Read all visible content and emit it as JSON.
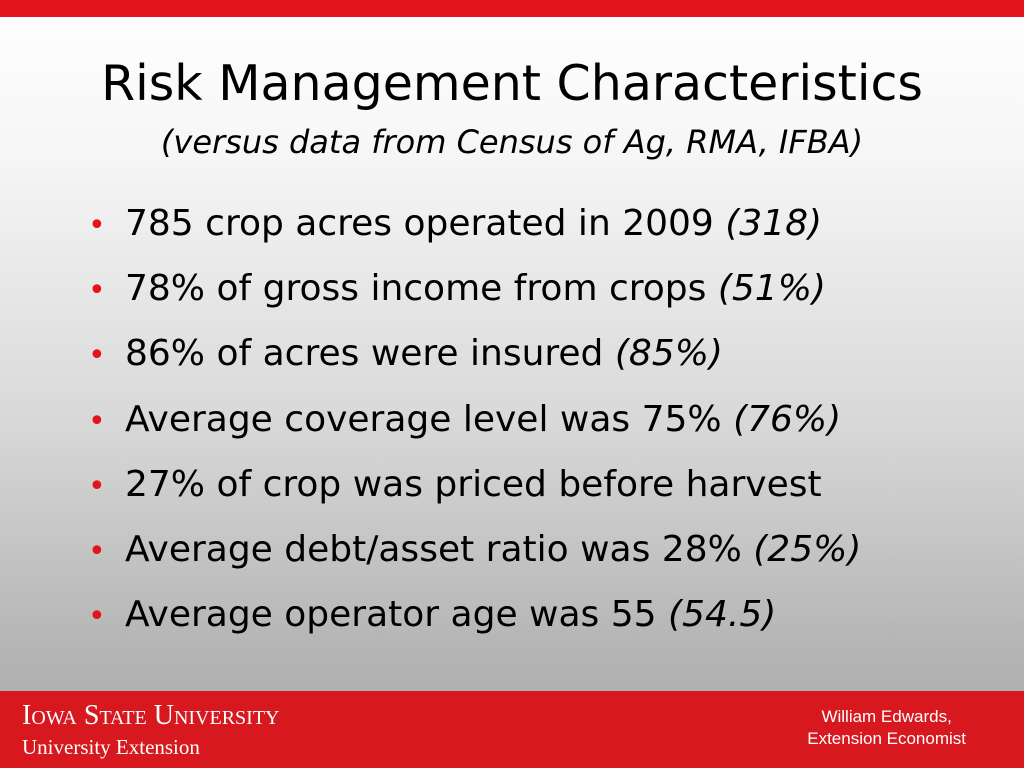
{
  "slide": {
    "title": "Risk Management Characteristics",
    "subtitle": "(versus data from Census of Ag, RMA, IFBA)",
    "bullets": [
      {
        "text": "785 crop acres operated in 2009 ",
        "comparison": "(318)"
      },
      {
        "text": "78% of gross income from crops ",
        "comparison": "(51%)"
      },
      {
        "text": "86% of acres were insured ",
        "comparison": "(85%)"
      },
      {
        "text": "Average coverage level was 75% ",
        "comparison": "(76%)"
      },
      {
        "text": "27% of crop was priced before harvest",
        "comparison": ""
      },
      {
        "text": "Average debt/asset ratio was 28% ",
        "comparison": "(25%)"
      },
      {
        "text": "Average operator age was 55 ",
        "comparison": "(54.5)"
      }
    ],
    "bullet_glyph": "•"
  },
  "footer": {
    "university": "Iowa State University",
    "extension": "University Extension",
    "presenter_name": "William Edwards,",
    "presenter_role": "Extension Economist"
  },
  "colors": {
    "accent_red": "#e3141b",
    "footer_red": "#d7181f"
  }
}
